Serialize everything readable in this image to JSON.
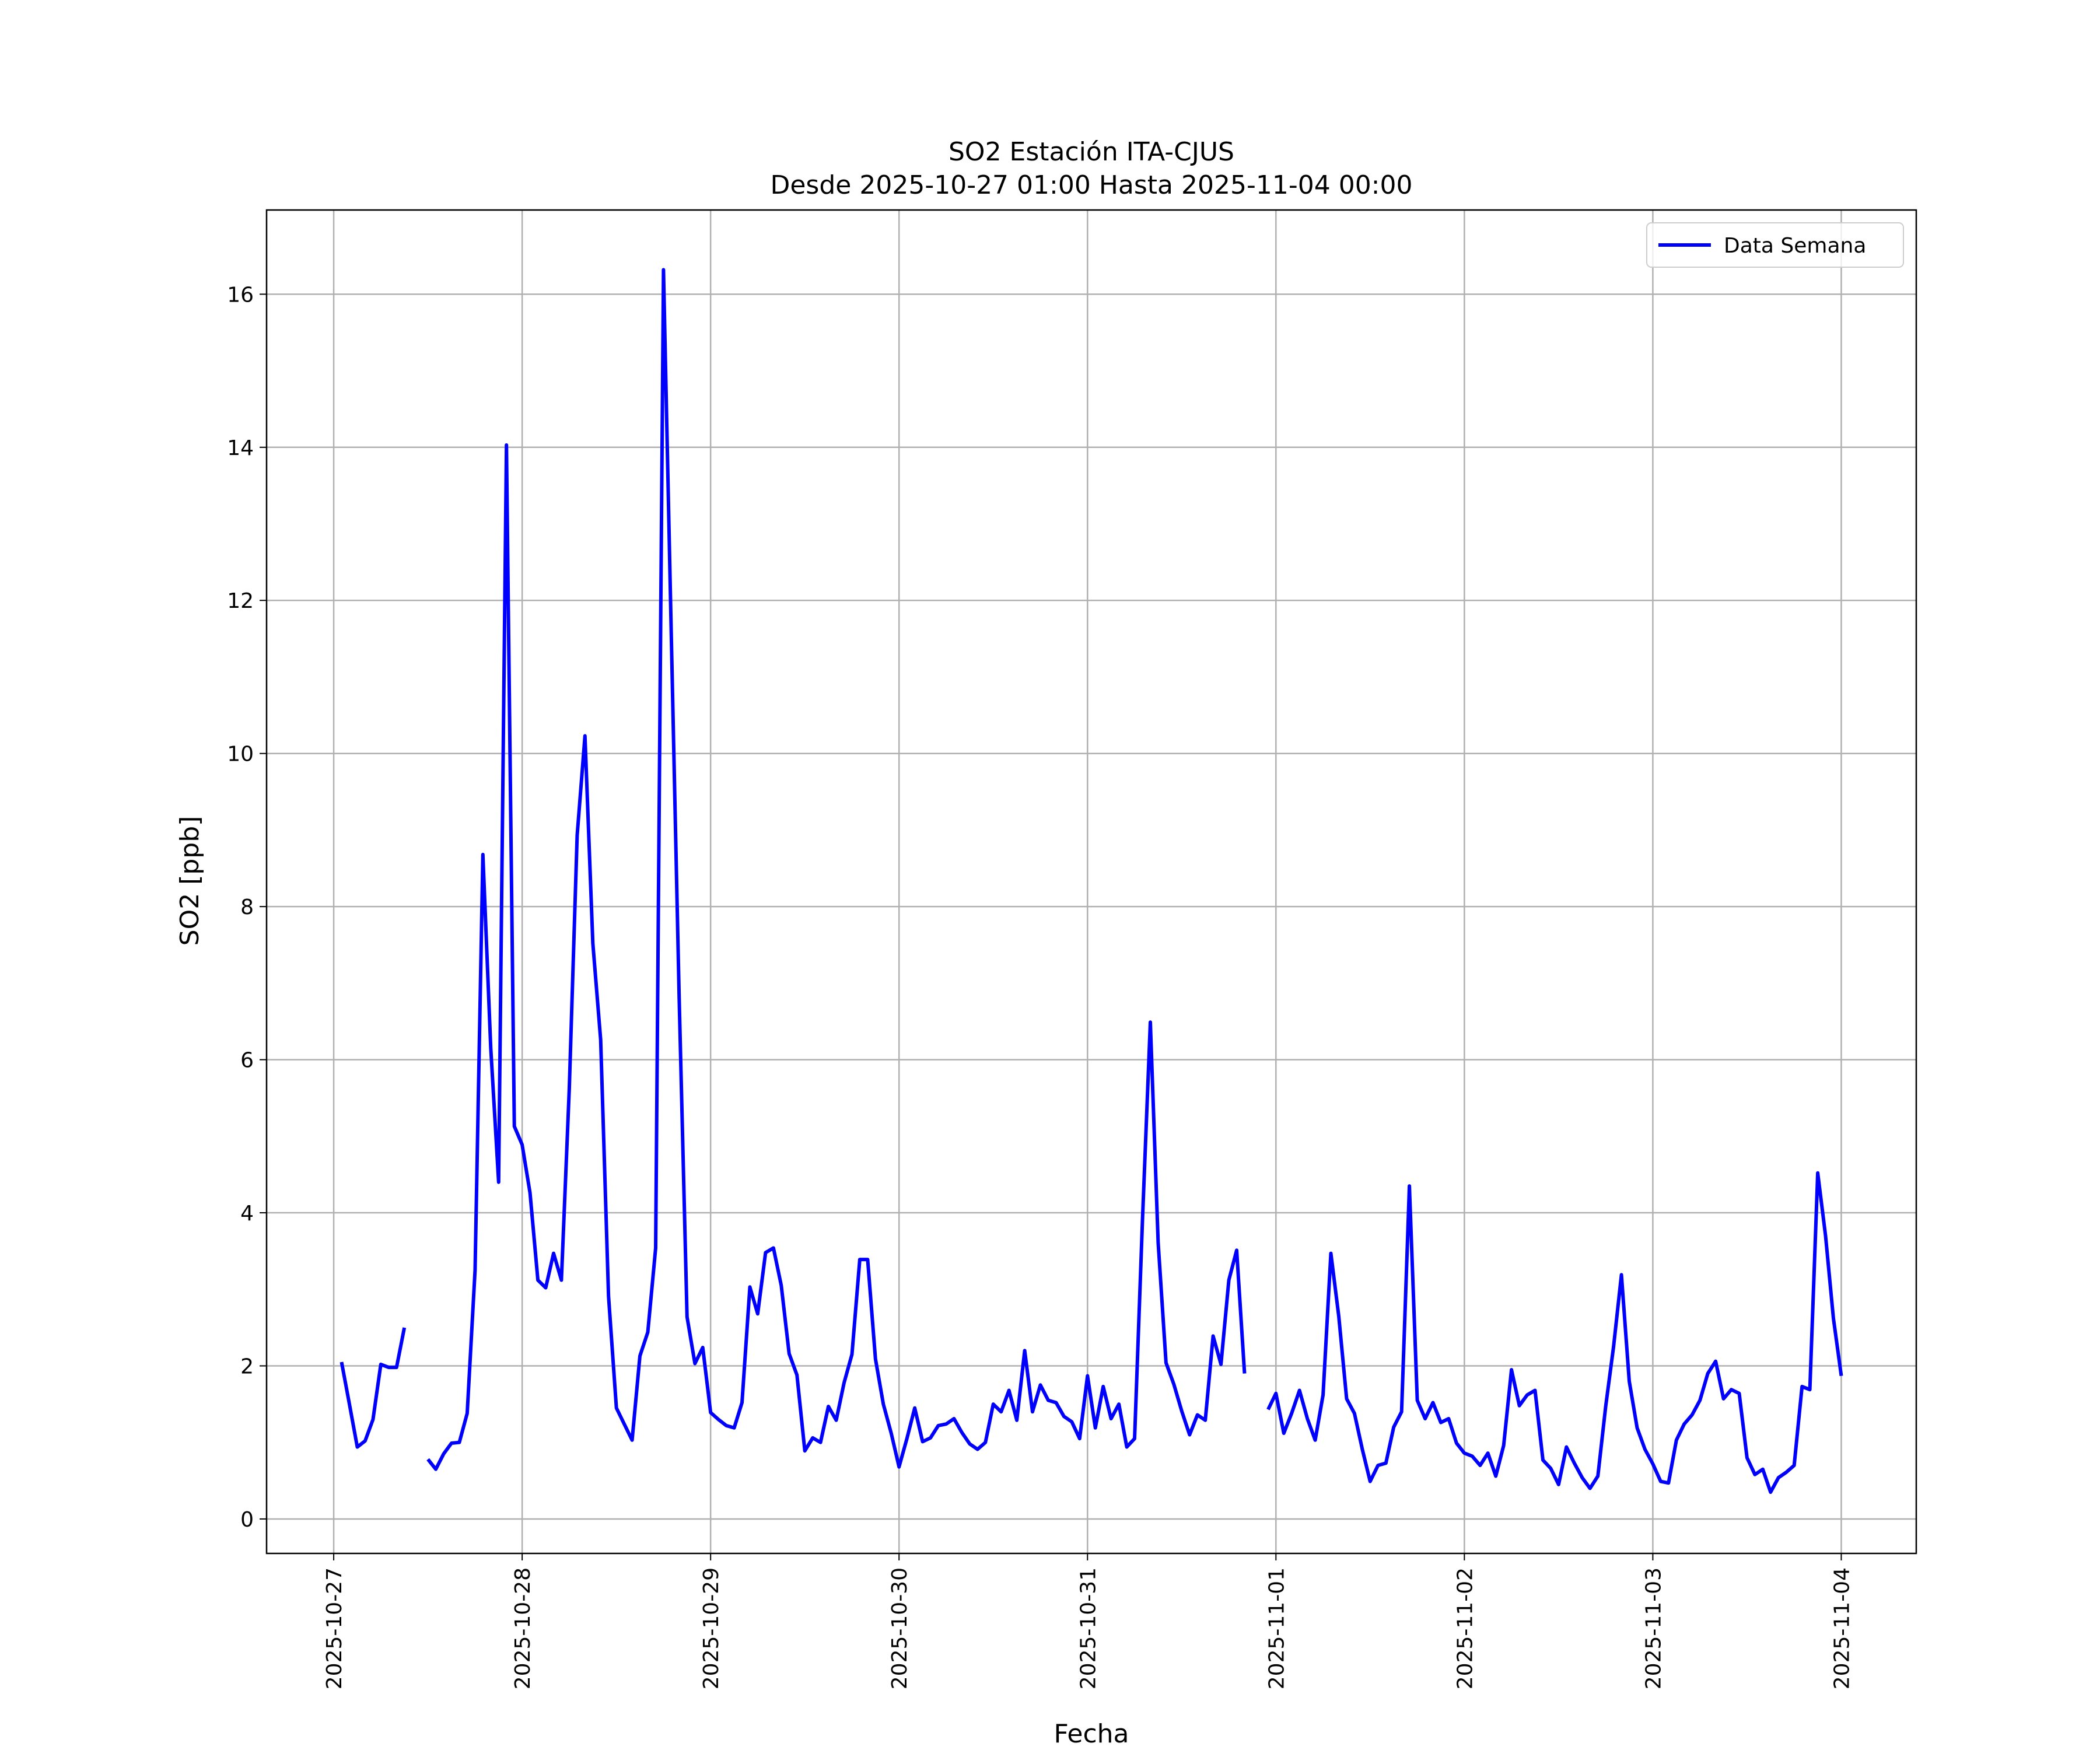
{
  "chart_data": {
    "type": "line",
    "title": "SO2 Estación ITA-CJUS",
    "subtitle": "Desde 2025-10-27 01:00 Hasta 2025-11-04 00:00",
    "xlabel": "Fecha",
    "ylabel": "SO2 [ppb]",
    "x": [
      "2025-10-27 01:00",
      "2025-10-27 02:00",
      "2025-10-27 03:00",
      "2025-10-27 04:00",
      "2025-10-27 05:00",
      "2025-10-27 06:00",
      "2025-10-27 07:00",
      "2025-10-27 08:00",
      "2025-10-27 09:00",
      "2025-10-27 10:00",
      "2025-10-27 11:00",
      "2025-10-27 12:00",
      "2025-10-27 13:00",
      "2025-10-27 14:00",
      "2025-10-27 15:00",
      "2025-10-27 16:00",
      "2025-10-27 17:00",
      "2025-10-27 18:00",
      "2025-10-27 19:00",
      "2025-10-27 20:00",
      "2025-10-27 21:00",
      "2025-10-27 22:00",
      "2025-10-27 23:00",
      "2025-10-28 00:00",
      "2025-10-28 01:00",
      "2025-10-28 02:00",
      "2025-10-28 03:00",
      "2025-10-28 04:00",
      "2025-10-28 05:00",
      "2025-10-28 06:00",
      "2025-10-28 07:00",
      "2025-10-28 08:00",
      "2025-10-28 09:00",
      "2025-10-28 10:00",
      "2025-10-28 11:00",
      "2025-10-28 12:00",
      "2025-10-28 13:00",
      "2025-10-28 14:00",
      "2025-10-28 15:00",
      "2025-10-28 16:00",
      "2025-10-28 17:00",
      "2025-10-28 18:00",
      "2025-10-28 19:00",
      "2025-10-28 20:00",
      "2025-10-28 21:00",
      "2025-10-28 22:00",
      "2025-10-28 23:00",
      "2025-10-29 00:00",
      "2025-10-29 01:00",
      "2025-10-29 02:00",
      "2025-10-29 03:00",
      "2025-10-29 04:00",
      "2025-10-29 05:00",
      "2025-10-29 06:00",
      "2025-10-29 07:00",
      "2025-10-29 08:00",
      "2025-10-29 09:00",
      "2025-10-29 10:00",
      "2025-10-29 11:00",
      "2025-10-29 12:00",
      "2025-10-29 13:00",
      "2025-10-29 14:00",
      "2025-10-29 15:00",
      "2025-10-29 16:00",
      "2025-10-29 17:00",
      "2025-10-29 18:00",
      "2025-10-29 19:00",
      "2025-10-29 20:00",
      "2025-10-29 21:00",
      "2025-10-29 22:00",
      "2025-10-29 23:00",
      "2025-10-30 00:00",
      "2025-10-30 01:00",
      "2025-10-30 02:00",
      "2025-10-30 03:00",
      "2025-10-30 04:00",
      "2025-10-30 05:00",
      "2025-10-30 06:00",
      "2025-10-30 07:00",
      "2025-10-30 08:00",
      "2025-10-30 09:00",
      "2025-10-30 10:00",
      "2025-10-30 11:00",
      "2025-10-30 12:00",
      "2025-10-30 13:00",
      "2025-10-30 14:00",
      "2025-10-30 15:00",
      "2025-10-30 16:00",
      "2025-10-30 17:00",
      "2025-10-30 18:00",
      "2025-10-30 19:00",
      "2025-10-30 20:00",
      "2025-10-30 21:00",
      "2025-10-30 22:00",
      "2025-10-30 23:00",
      "2025-10-31 00:00",
      "2025-10-31 01:00",
      "2025-10-31 02:00",
      "2025-10-31 03:00",
      "2025-10-31 04:00",
      "2025-10-31 05:00",
      "2025-10-31 06:00",
      "2025-10-31 07:00",
      "2025-10-31 08:00",
      "2025-10-31 09:00",
      "2025-10-31 10:00",
      "2025-10-31 11:00",
      "2025-10-31 12:00",
      "2025-10-31 13:00",
      "2025-10-31 14:00",
      "2025-10-31 15:00",
      "2025-10-31 16:00",
      "2025-10-31 17:00",
      "2025-10-31 18:00",
      "2025-10-31 19:00",
      "2025-10-31 20:00",
      "2025-10-31 21:00",
      "2025-10-31 22:00",
      "2025-10-31 23:00",
      "2025-11-01 00:00",
      "2025-11-01 01:00",
      "2025-11-01 02:00",
      "2025-11-01 03:00",
      "2025-11-01 04:00",
      "2025-11-01 05:00",
      "2025-11-01 06:00",
      "2025-11-01 07:00",
      "2025-11-01 08:00",
      "2025-11-01 09:00",
      "2025-11-01 10:00",
      "2025-11-01 11:00",
      "2025-11-01 12:00",
      "2025-11-01 13:00",
      "2025-11-01 14:00",
      "2025-11-01 15:00",
      "2025-11-01 16:00",
      "2025-11-01 17:00",
      "2025-11-01 18:00",
      "2025-11-01 19:00",
      "2025-11-01 20:00",
      "2025-11-01 21:00",
      "2025-11-01 22:00",
      "2025-11-01 23:00",
      "2025-11-02 00:00",
      "2025-11-02 01:00",
      "2025-11-02 02:00",
      "2025-11-02 03:00",
      "2025-11-02 04:00",
      "2025-11-02 05:00",
      "2025-11-02 06:00",
      "2025-11-02 07:00",
      "2025-11-02 08:00",
      "2025-11-02 09:00",
      "2025-11-02 10:00",
      "2025-11-02 11:00",
      "2025-11-02 12:00",
      "2025-11-02 13:00",
      "2025-11-02 14:00",
      "2025-11-02 15:00",
      "2025-11-02 16:00",
      "2025-11-02 17:00",
      "2025-11-02 18:00",
      "2025-11-02 19:00",
      "2025-11-02 20:00",
      "2025-11-02 21:00",
      "2025-11-02 22:00",
      "2025-11-02 23:00",
      "2025-11-03 00:00",
      "2025-11-03 01:00",
      "2025-11-03 02:00",
      "2025-11-03 03:00",
      "2025-11-03 04:00",
      "2025-11-03 05:00",
      "2025-11-03 06:00",
      "2025-11-03 07:00",
      "2025-11-03 08:00",
      "2025-11-03 09:00",
      "2025-11-03 10:00",
      "2025-11-03 11:00",
      "2025-11-03 12:00",
      "2025-11-03 13:00",
      "2025-11-03 14:00",
      "2025-11-03 15:00",
      "2025-11-03 16:00",
      "2025-11-03 17:00",
      "2025-11-03 18:00",
      "2025-11-03 19:00",
      "2025-11-03 20:00",
      "2025-11-03 21:00",
      "2025-11-03 22:00",
      "2025-11-03 23:00",
      "2025-11-04 00:00"
    ],
    "series": [
      {
        "name": "Data Semana",
        "color": "#0000ff",
        "values": [
          2.05,
          1.5,
          0.94,
          1.02,
          1.3,
          2.02,
          1.98,
          1.98,
          2.5,
          null,
          null,
          0.78,
          0.65,
          0.85,
          0.99,
          1.0,
          1.38,
          3.25,
          8.68,
          6.15,
          4.4,
          14.03,
          5.13,
          4.89,
          4.26,
          3.12,
          3.02,
          3.47,
          3.12,
          5.62,
          8.93,
          10.23,
          7.52,
          6.26,
          2.91,
          1.45,
          1.24,
          1.03,
          2.13,
          2.44,
          3.54,
          16.32,
          11.5,
          6.8,
          2.64,
          2.03,
          2.24,
          1.39,
          1.3,
          1.22,
          1.19,
          1.52,
          3.03,
          2.68,
          3.48,
          3.54,
          3.05,
          2.16,
          1.88,
          0.89,
          1.06,
          1.0,
          1.47,
          1.29,
          1.78,
          2.15,
          3.39,
          3.39,
          2.09,
          1.5,
          1.12,
          0.68,
          1.05,
          1.45,
          1.01,
          1.06,
          1.22,
          1.24,
          1.31,
          1.13,
          0.98,
          0.91,
          1.0,
          1.5,
          1.4,
          1.68,
          1.29,
          2.2,
          1.4,
          1.75,
          1.55,
          1.52,
          1.34,
          1.27,
          1.05,
          1.87,
          1.19,
          1.73,
          1.31,
          1.5,
          0.94,
          1.05,
          3.9,
          6.49,
          3.61,
          2.04,
          1.76,
          1.41,
          1.1,
          1.36,
          1.29,
          2.39,
          2.02,
          3.12,
          3.51,
          1.9,
          null,
          null,
          1.43,
          1.64,
          1.12,
          1.38,
          1.68,
          1.31,
          1.03,
          1.62,
          3.47,
          2.65,
          1.57,
          1.38,
          0.91,
          0.49,
          0.7,
          0.73,
          1.2,
          1.4,
          4.35,
          1.55,
          1.31,
          1.52,
          1.26,
          1.31,
          0.99,
          0.86,
          0.82,
          0.7,
          0.86,
          0.56,
          0.96,
          1.95,
          1.48,
          1.62,
          1.68,
          0.77,
          0.66,
          0.45,
          0.94,
          0.73,
          0.54,
          0.4,
          0.56,
          1.47,
          2.25,
          3.19,
          1.8,
          1.19,
          0.91,
          0.72,
          0.49,
          0.47,
          1.03,
          1.24,
          1.36,
          1.55,
          1.9,
          2.06,
          1.57,
          1.69,
          1.64,
          0.8,
          0.58,
          0.65,
          0.35,
          0.54,
          0.61,
          0.7,
          1.73,
          1.69,
          4.52,
          3.7,
          2.62,
          1.87
        ]
      }
    ],
    "xlim": [
      "2025-10-26 15:27",
      "2025-11-04 09:33"
    ],
    "xticks": [
      "2025-10-27",
      "2025-10-28",
      "2025-10-29",
      "2025-10-30",
      "2025-10-31",
      "2025-11-01",
      "2025-11-02",
      "2025-11-03",
      "2025-11-04"
    ],
    "ylim": [
      -0.45,
      17.1
    ],
    "yticks": [
      0,
      2,
      4,
      6,
      8,
      10,
      12,
      14,
      16
    ],
    "grid": true,
    "legend": "upper right"
  }
}
